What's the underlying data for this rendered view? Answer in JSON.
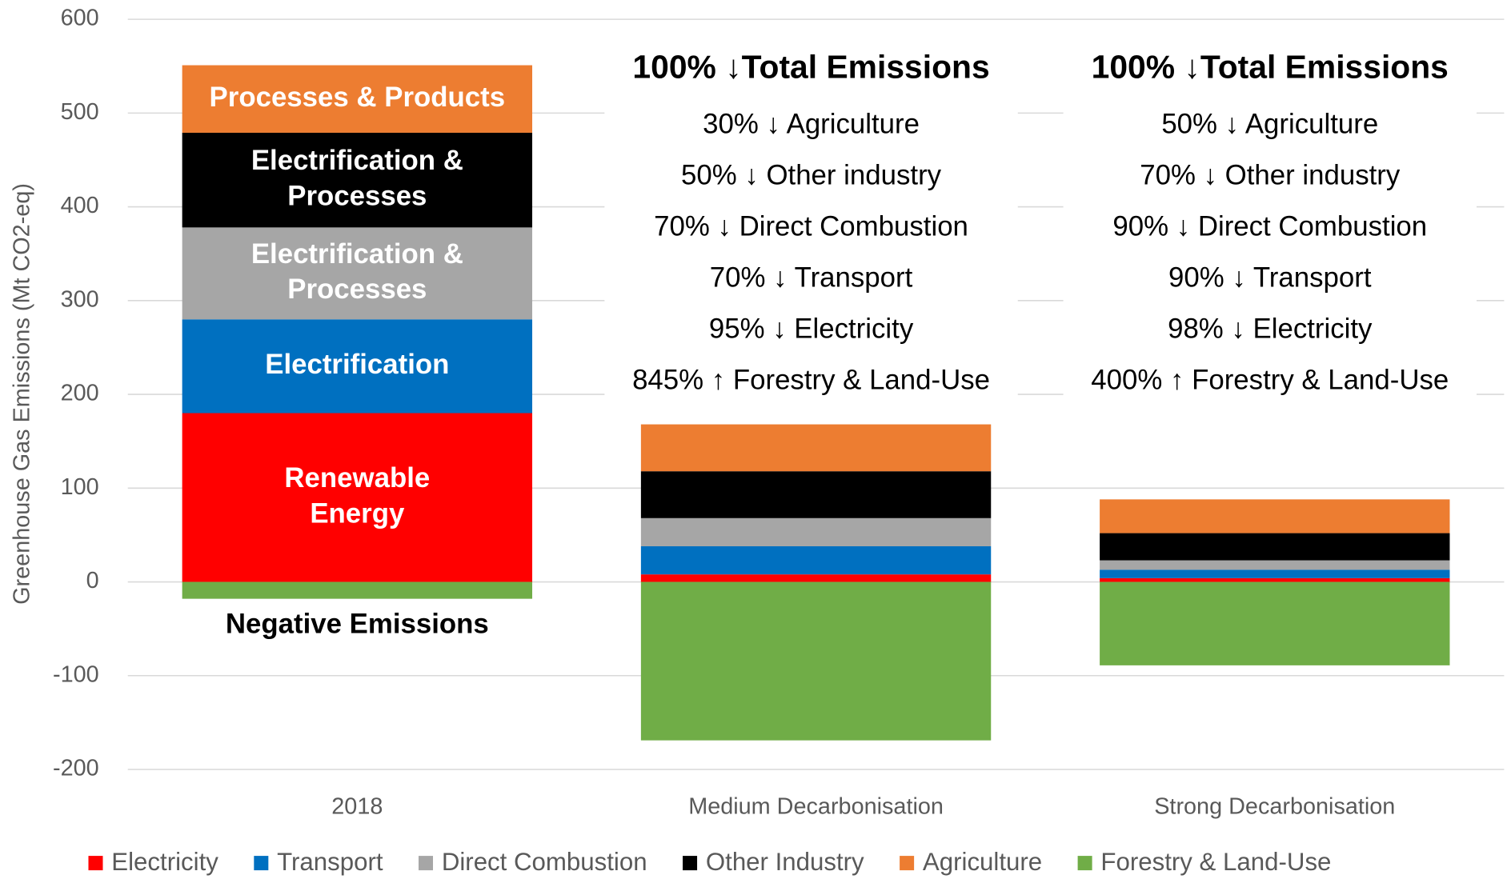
{
  "chart_data": {
    "type": "stacked_bar",
    "y_label": "Greenhouse Gas Emissions (Mt CO2-eq)",
    "categories": [
      "2018",
      "Medium Decarbonisation",
      "Strong Decarbonisation"
    ],
    "series": [
      {
        "name": "Electricity",
        "color": "#ff0000",
        "values": [
          180,
          8,
          4
        ]
      },
      {
        "name": "Transport",
        "color": "#0070c0",
        "values": [
          100,
          30,
          9
        ]
      },
      {
        "name": "Direct Combustion",
        "color": "#a6a6a6",
        "values": [
          98,
          30,
          10
        ]
      },
      {
        "name": "Other Industry",
        "color": "#000000",
        "values": [
          101,
          50,
          29
        ]
      },
      {
        "name": "Agriculture",
        "color": "#ed7d31",
        "values": [
          72,
          50,
          36
        ]
      },
      {
        "name": "Forestry & Land-Use",
        "color": "#70ad47",
        "values": [
          -18,
          -169,
          -89
        ]
      }
    ],
    "segment_labels": [
      [
        "Renewable",
        "Energy"
      ],
      [
        "Electrification"
      ],
      [
        "Electrification &",
        "Processes"
      ],
      [
        "Electrification &",
        "Processes"
      ],
      [
        "Processes & Products"
      ],
      [
        "Negative Emissions"
      ]
    ],
    "notes": [
      {
        "title": "100% ↓Total Emissions",
        "lines": [
          "30% ↓ Agriculture",
          "50% ↓ Other industry",
          "70% ↓ Direct Combustion",
          "70% ↓ Transport",
          "95% ↓ Electricity",
          "845% ↑ Forestry & Land-Use"
        ]
      },
      {
        "title": "100% ↓Total Emissions",
        "lines": [
          "50% ↓ Agriculture",
          "70% ↓ Other industry",
          "90% ↓ Direct Combustion",
          "90% ↓ Transport",
          "98% ↓ Electricity",
          "400% ↑ Forestry & Land-Use"
        ]
      }
    ],
    "ylim": [
      -200,
      600
    ],
    "yticks": [
      -200,
      -100,
      0,
      100,
      200,
      300,
      400,
      500,
      600
    ],
    "grid": true,
    "legend": "bottom"
  }
}
